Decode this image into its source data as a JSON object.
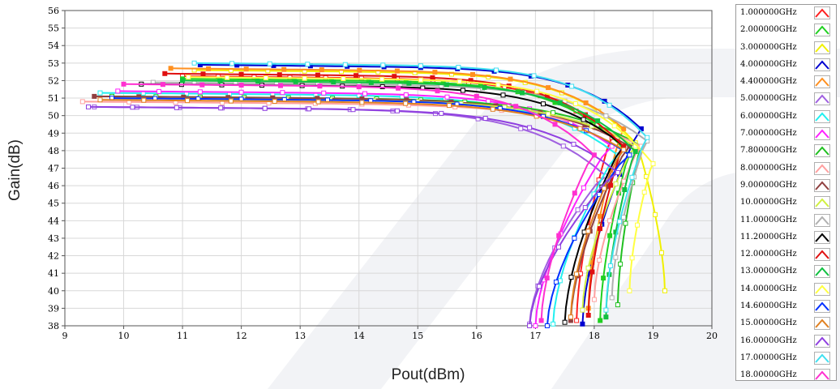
{
  "chart_data": {
    "type": "line",
    "xlabel": "Pout(dBm)",
    "ylabel": "Gain(dB)",
    "xlim": [
      9,
      20
    ],
    "ylim": [
      38,
      56
    ],
    "xticks": [
      "9",
      "10",
      "11",
      "12",
      "13",
      "14",
      "15",
      "16",
      "17",
      "18",
      "19",
      "20"
    ],
    "yticks": [
      "38",
      "39",
      "40",
      "41",
      "42",
      "43",
      "44",
      "45",
      "46",
      "47",
      "48",
      "49",
      "50",
      "51",
      "52",
      "53",
      "54",
      "55",
      "56"
    ],
    "grid": true,
    "legend_position": "right",
    "series": [
      {
        "name": "1.000000GHz",
        "color": "#ff2020",
        "marker": "open",
        "g0": 52.25,
        "x0": 11.0,
        "xsat": 18.3,
        "gsat": 49.0,
        "xend": 17.7,
        "gend": 38.3
      },
      {
        "name": "2.000000GHz",
        "color": "#20d020",
        "marker": "filled",
        "g0": 52.1,
        "x0": 11.0,
        "xsat": 18.6,
        "gsat": 48.0,
        "xend": 18.1,
        "gend": 38.3
      },
      {
        "name": "3.000000GHz",
        "color": "#f0f000",
        "marker": "open",
        "g0": 52.6,
        "x0": 11.2,
        "xsat": 18.7,
        "gsat": 48.7,
        "xend": 19.2,
        "gend": 40.0
      },
      {
        "name": "4.000000GHz",
        "color": "#0000d0",
        "marker": "filled",
        "g0": 52.9,
        "x0": 11.3,
        "xsat": 18.8,
        "gsat": 49.5,
        "xend": 17.8,
        "gend": 38.1
      },
      {
        "name": "4.400000GHz",
        "color": "#ff9020",
        "marker": "filled",
        "g0": 52.7,
        "x0": 10.8,
        "xsat": 18.5,
        "gsat": 49.5,
        "xend": 17.9,
        "gend": 39.0
      },
      {
        "name": "5.000000GHz",
        "color": "#a060e0",
        "marker": "open",
        "g0": 50.5,
        "x0": 9.5,
        "xsat": 18.2,
        "gsat": 46.8,
        "xend": 16.9,
        "gend": 38.1
      },
      {
        "name": "6.000000GHz",
        "color": "#20f0f0",
        "marker": "open",
        "g0": 51.3,
        "x0": 9.6,
        "xsat": 18.4,
        "gsat": 48.0,
        "xend": 17.3,
        "gend": 38.1
      },
      {
        "name": "7.000000GHz",
        "color": "#ff20ff",
        "marker": "open",
        "g0": 51.4,
        "x0": 9.9,
        "xsat": 18.3,
        "gsat": 48.5,
        "xend": 17.0,
        "gend": 38.0
      },
      {
        "name": "7.800000GHz",
        "color": "#20c020",
        "marker": "open",
        "g0": 51.1,
        "x0": 9.8,
        "xsat": 18.8,
        "gsat": 48.5,
        "xend": 18.4,
        "gend": 39.2
      },
      {
        "name": "8.000000GHz",
        "color": "#ffa0a0",
        "marker": "open",
        "g0": 50.8,
        "x0": 9.3,
        "xsat": 18.8,
        "gsat": 48.5,
        "xend": 18.0,
        "gend": 39.5
      },
      {
        "name": "9.000000GHz",
        "color": "#904040",
        "marker": "filled",
        "g0": 51.1,
        "x0": 9.5,
        "xsat": 18.6,
        "gsat": 48.5,
        "xend": 17.6,
        "gend": 38.3
      },
      {
        "name": "10.00000GHz",
        "color": "#d0f040",
        "marker": "open",
        "g0": 51.0,
        "x0": 9.8,
        "xsat": 18.7,
        "gsat": 48.5,
        "xend": 17.8,
        "gend": 38.9
      },
      {
        "name": "11.00000GHz",
        "color": "#b0b0b0",
        "marker": "open",
        "g0": 51.9,
        "x0": 10.5,
        "xsat": 18.9,
        "gsat": 48.8,
        "xend": 18.3,
        "gend": 39.6
      },
      {
        "name": "11.20000GHz",
        "color": "#000000",
        "marker": "open",
        "g0": 51.8,
        "x0": 10.3,
        "xsat": 18.5,
        "gsat": 48.5,
        "xend": 17.5,
        "gend": 38.2
      },
      {
        "name": "12.00000GHz",
        "color": "#e01010",
        "marker": "filled",
        "g0": 52.4,
        "x0": 10.7,
        "xsat": 18.5,
        "gsat": 48.5,
        "xend": 17.9,
        "gend": 38.6
      },
      {
        "name": "13.00000GHz",
        "color": "#10c040",
        "marker": "filled",
        "g0": 52.0,
        "x0": 11.0,
        "xsat": 18.7,
        "gsat": 48.2,
        "xend": 18.2,
        "gend": 38.5
      },
      {
        "name": "14.00000GHz",
        "color": "#ffff40",
        "marker": "open",
        "g0": 52.2,
        "x0": 11.1,
        "xsat": 19.0,
        "gsat": 47.5,
        "xend": 18.6,
        "gend": 40.0
      },
      {
        "name": "14.60000GHz",
        "color": "#0030ff",
        "marker": "open",
        "g0": 51.0,
        "x0": 9.8,
        "xsat": 18.6,
        "gsat": 48.0,
        "xend": 17.2,
        "gend": 38.0
      },
      {
        "name": "15.00000GHz",
        "color": "#e08020",
        "marker": "open",
        "g0": 50.9,
        "x0": 9.6,
        "xsat": 18.5,
        "gsat": 48.3,
        "xend": 17.6,
        "gend": 38.5
      },
      {
        "name": "16.00000GHz",
        "color": "#9040e0",
        "marker": "open",
        "g0": 50.5,
        "x0": 9.4,
        "xsat": 18.4,
        "gsat": 47.0,
        "xend": 16.9,
        "gend": 38.0
      },
      {
        "name": "17.00000GHz",
        "color": "#40e0f0",
        "marker": "open",
        "g0": 53.0,
        "x0": 11.2,
        "xsat": 18.9,
        "gsat": 49.0,
        "xend": 18.2,
        "gend": 38.9
      },
      {
        "name": "18.00000GHz",
        "color": "#ff30d0",
        "marker": "filled",
        "g0": 51.8,
        "x0": 10.0,
        "xsat": 18.0,
        "gsat": 48.0,
        "xend": 17.1,
        "gend": 38.3
      }
    ]
  }
}
